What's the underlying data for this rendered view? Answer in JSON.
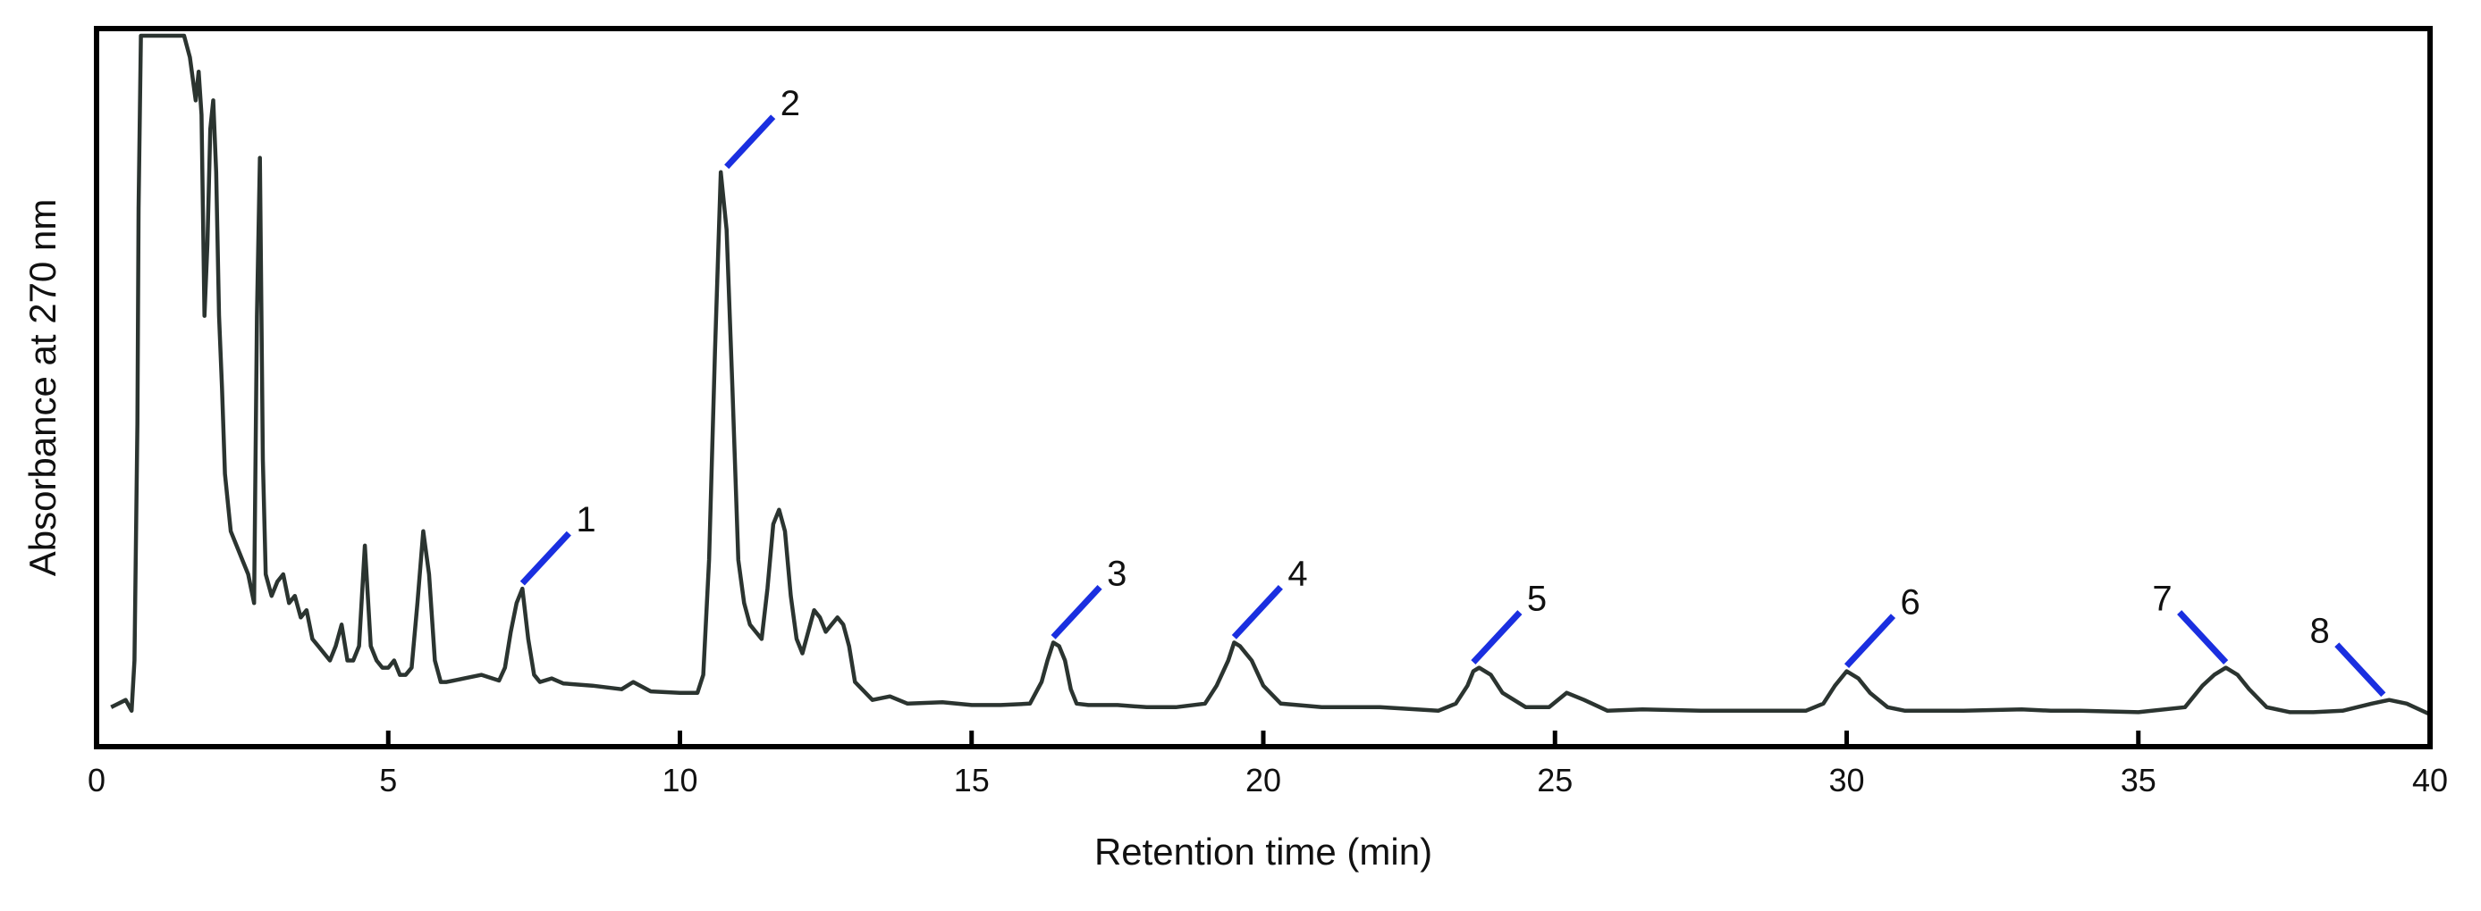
{
  "chart_data": {
    "type": "line",
    "title": "",
    "xlabel": "Retention time (min)",
    "ylabel": "Absorbance at 270 nm",
    "xlim": [
      0,
      40
    ],
    "ylim": [
      0,
      1
    ],
    "x_ticks": [
      0,
      5,
      10,
      15,
      20,
      25,
      30,
      35,
      40
    ],
    "x_tick_labels": [
      "0",
      "5",
      "10",
      "15",
      "20",
      "25",
      "30",
      "35",
      "40"
    ],
    "y_ticks_shown": false,
    "grid": false,
    "series": [
      {
        "x": [
          0.25,
          0.5,
          0.6,
          0.65,
          0.7,
          0.72,
          0.76,
          0.78,
          0.8,
          0.82,
          0.84,
          1.0,
          1.2,
          1.4,
          1.5,
          1.6,
          1.7,
          1.75,
          1.8,
          1.85,
          1.9,
          1.95,
          2.0,
          2.05,
          2.1,
          2.15,
          2.2,
          2.3,
          2.4,
          2.5,
          2.6,
          2.7,
          2.75,
          2.8,
          2.85,
          2.9,
          3.0,
          3.1,
          3.2,
          3.3,
          3.4,
          3.5,
          3.6,
          3.7,
          3.8,
          3.9,
          4.0,
          4.1,
          4.2,
          4.3,
          4.4,
          4.5,
          4.6,
          4.7,
          4.8,
          4.9,
          5.0,
          5.1,
          5.2,
          5.3,
          5.4,
          5.5,
          5.6,
          5.7,
          5.8,
          5.9,
          6.0,
          6.3,
          6.6,
          6.9,
          7.0,
          7.1,
          7.2,
          7.3,
          7.4,
          7.5,
          7.6,
          7.8,
          8.0,
          8.5,
          9.0,
          9.2,
          9.5,
          10.0,
          10.3,
          10.4,
          10.5,
          10.6,
          10.7,
          10.8,
          10.9,
          11.0,
          11.1,
          11.2,
          11.3,
          11.4,
          11.5,
          11.6,
          11.7,
          11.8,
          11.9,
          12.0,
          12.1,
          12.2,
          12.3,
          12.4,
          12.5,
          12.6,
          12.7,
          12.8,
          12.9,
          13.0,
          13.3,
          13.6,
          13.9,
          14.5,
          15.0,
          15.5,
          16.0,
          16.2,
          16.3,
          16.4,
          16.5,
          16.6,
          16.7,
          16.8,
          17.0,
          17.5,
          18.0,
          18.5,
          19.0,
          19.2,
          19.4,
          19.5,
          19.6,
          19.8,
          20.0,
          20.3,
          21.0,
          22.0,
          23.0,
          23.3,
          23.5,
          23.6,
          23.7,
          23.9,
          24.1,
          24.5,
          24.9,
          25.2,
          25.5,
          25.9,
          26.5,
          27.5,
          28.5,
          29.3,
          29.6,
          29.8,
          30.0,
          30.2,
          30.4,
          30.7,
          31.0,
          32.0,
          33.0,
          33.5,
          34.0,
          35.0,
          35.8,
          36.1,
          36.3,
          36.5,
          36.7,
          36.9,
          37.2,
          37.6,
          38.0,
          38.5,
          39.0,
          39.3,
          39.6,
          40.0
        ],
        "y": [
          0.055,
          0.065,
          0.05,
          0.12,
          0.45,
          0.75,
          0.99,
          0.99,
          0.99,
          0.99,
          0.99,
          0.99,
          0.99,
          0.99,
          0.99,
          0.96,
          0.9,
          0.94,
          0.88,
          0.6,
          0.7,
          0.86,
          0.9,
          0.8,
          0.6,
          0.5,
          0.38,
          0.3,
          0.28,
          0.26,
          0.24,
          0.2,
          0.6,
          0.82,
          0.4,
          0.24,
          0.21,
          0.23,
          0.24,
          0.2,
          0.21,
          0.18,
          0.19,
          0.15,
          0.14,
          0.13,
          0.12,
          0.14,
          0.17,
          0.12,
          0.12,
          0.14,
          0.28,
          0.14,
          0.12,
          0.11,
          0.11,
          0.12,
          0.1,
          0.1,
          0.11,
          0.2,
          0.3,
          0.24,
          0.12,
          0.09,
          0.09,
          0.095,
          0.1,
          0.092,
          0.11,
          0.16,
          0.2,
          0.22,
          0.15,
          0.1,
          0.09,
          0.095,
          0.088,
          0.085,
          0.08,
          0.09,
          0.077,
          0.075,
          0.075,
          0.1,
          0.26,
          0.55,
          0.8,
          0.72,
          0.5,
          0.26,
          0.2,
          0.17,
          0.16,
          0.15,
          0.22,
          0.31,
          0.33,
          0.3,
          0.21,
          0.15,
          0.13,
          0.16,
          0.19,
          0.18,
          0.16,
          0.17,
          0.18,
          0.17,
          0.14,
          0.09,
          0.065,
          0.07,
          0.06,
          0.062,
          0.058,
          0.058,
          0.06,
          0.09,
          0.12,
          0.145,
          0.14,
          0.12,
          0.08,
          0.06,
          0.058,
          0.058,
          0.055,
          0.055,
          0.06,
          0.085,
          0.12,
          0.145,
          0.14,
          0.12,
          0.085,
          0.06,
          0.055,
          0.055,
          0.05,
          0.06,
          0.085,
          0.105,
          0.11,
          0.1,
          0.075,
          0.055,
          0.055,
          0.075,
          0.065,
          0.05,
          0.052,
          0.05,
          0.05,
          0.05,
          0.06,
          0.085,
          0.105,
          0.095,
          0.075,
          0.055,
          0.05,
          0.05,
          0.052,
          0.05,
          0.05,
          0.048,
          0.055,
          0.085,
          0.1,
          0.11,
          0.1,
          0.08,
          0.055,
          0.048,
          0.048,
          0.05,
          0.06,
          0.065,
          0.06,
          0.045
        ]
      }
    ],
    "annotations": [
      {
        "label": "1",
        "x": 7.3,
        "y": 0.22,
        "side": "right"
      },
      {
        "label": "2",
        "x": 10.8,
        "y": 0.8,
        "side": "right"
      },
      {
        "label": "3",
        "x": 16.4,
        "y": 0.145,
        "side": "right"
      },
      {
        "label": "4",
        "x": 19.5,
        "y": 0.145,
        "side": "right"
      },
      {
        "label": "5",
        "x": 23.6,
        "y": 0.11,
        "side": "right"
      },
      {
        "label": "6",
        "x": 30.0,
        "y": 0.105,
        "side": "right"
      },
      {
        "label": "7",
        "x": 36.5,
        "y": 0.11,
        "side": "left"
      },
      {
        "label": "8",
        "x": 39.2,
        "y": 0.065,
        "side": "left"
      }
    ]
  }
}
